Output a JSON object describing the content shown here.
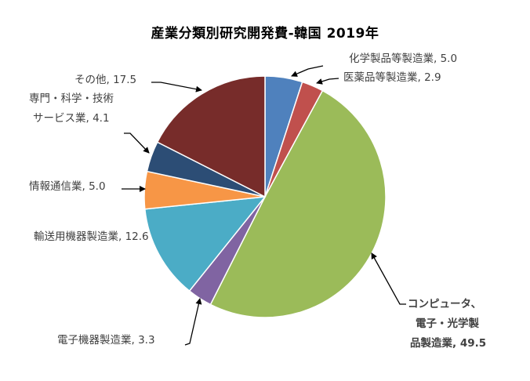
{
  "chart_data": {
    "type": "pie",
    "title": "産業分類別研究開発費-韓国  2019年",
    "start_angle": "12 o'clock, clockwise",
    "categories": [
      "化学製品等製造業",
      "医薬品等製造業",
      "コンピュータ、電子・光学製品製造業",
      "電子機器製造業",
      "輸送用機器製造業",
      "情報通信業",
      "専門・科学・技術サービス業",
      "その他"
    ],
    "values": [
      5.0,
      2.9,
      49.5,
      3.3,
      12.6,
      5.0,
      4.1,
      17.5
    ],
    "colors": [
      "#4f81bd",
      "#c0504d",
      "#9bbb59",
      "#8064a2",
      "#4bacc6",
      "#f79646",
      "#2c4d75",
      "#772c2a"
    ],
    "legend": "none (data labels with leader lines)"
  },
  "labels": {
    "chem": "化学製品等製造業, 5.0",
    "pharma": "医薬品等製造業, 2.9",
    "computer_line1": "コンピュータ、",
    "computer_line2": "電子・光学製",
    "computer_line3": "品製造業, 49.5",
    "electric": "電子機器製造業, 3.3",
    "transport": "輸送用機器製造業, 12.6",
    "ict": "情報通信業, 5.0",
    "prof_line1": "専門・科学・技術",
    "prof_line2": "サービス業, 4.1",
    "other": "その他, 17.5"
  }
}
